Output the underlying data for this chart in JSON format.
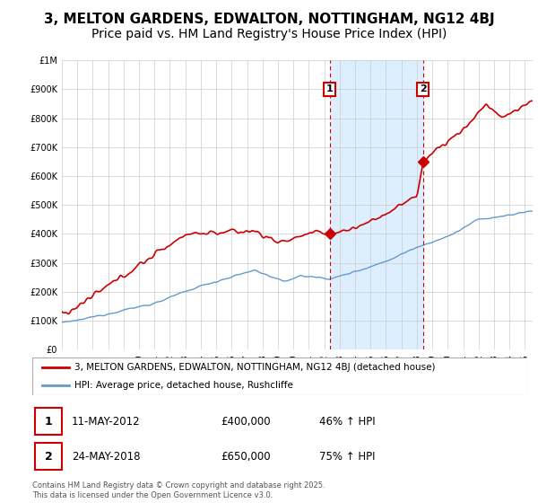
{
  "title": "3, MELTON GARDENS, EDWALTON, NOTTINGHAM, NG12 4BJ",
  "subtitle": "Price paid vs. HM Land Registry's House Price Index (HPI)",
  "legend_line1": "3, MELTON GARDENS, EDWALTON, NOTTINGHAM, NG12 4BJ (detached house)",
  "legend_line2": "HPI: Average price, detached house, Rushcliffe",
  "footnote": "Contains HM Land Registry data © Crown copyright and database right 2025.\nThis data is licensed under the Open Government Licence v3.0.",
  "annotation1_label": "1",
  "annotation1_date": "11-MAY-2012",
  "annotation1_price": "£400,000",
  "annotation1_hpi": "46% ↑ HPI",
  "annotation2_label": "2",
  "annotation2_date": "24-MAY-2018",
  "annotation2_price": "£650,000",
  "annotation2_hpi": "75% ↑ HPI",
  "sale1_x": 2012.36,
  "sale1_y": 400000,
  "sale2_x": 2018.39,
  "sale2_y": 650000,
  "vline1_x": 2012.36,
  "vline2_x": 2018.39,
  "hpi_color": "#6699cc",
  "price_color": "#cc0000",
  "vline_color": "#cc0000",
  "span_color": "#ddeeff",
  "grid_color": "#cccccc",
  "ylim": [
    0,
    1000000
  ],
  "xlim_min": 1995,
  "xlim_max": 2025.5,
  "title_fontsize": 11,
  "subtitle_fontsize": 10
}
